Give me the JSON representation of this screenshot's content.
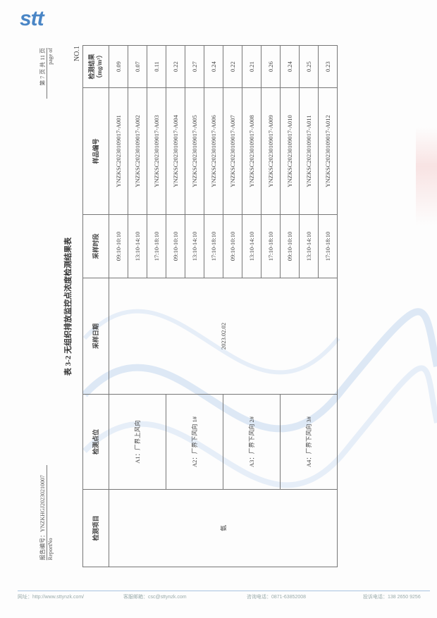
{
  "logo": "stt",
  "header": {
    "report_label": "报告编号：YNZKHGJ20230210007",
    "report_label_en": "ReportNo",
    "page_info": "第 7 页 共 11 页",
    "page_info_en": "page    of",
    "sheet_no": "NO.1"
  },
  "title": "表 3-2 无组织排放监控点浓度检测结果表",
  "table": {
    "headers": [
      "检测项目",
      "检测点位",
      "采样日期",
      "采样时段",
      "样品编号",
      "检测结果（mg/m³）"
    ],
    "item": "氨",
    "date": "2023.02.02",
    "points": [
      "A1：厂界上风向",
      "A2：厂界下风向 1#",
      "A3：厂界下风向 2#",
      "A4：厂界下风向 3#"
    ],
    "rows": [
      {
        "time": "09:10-10:10",
        "sample": "YNZKSC20230109017-A001",
        "result": "0.09"
      },
      {
        "time": "13:10-14:10",
        "sample": "YNZKSC20230109017-A002",
        "result": "0.07"
      },
      {
        "time": "17:10-18:10",
        "sample": "YNZKSC20230109017-A003",
        "result": "0.11"
      },
      {
        "time": "09:10-10:10",
        "sample": "YNZKSC20230109017-A004",
        "result": "0.22"
      },
      {
        "time": "13:10-14:10",
        "sample": "YNZKSC20230109017-A005",
        "result": "0.27"
      },
      {
        "time": "17:10-18:10",
        "sample": "YNZKSC20230109017-A006",
        "result": "0.24"
      },
      {
        "time": "09:10-10:10",
        "sample": "YNZKSC20230109017-A007",
        "result": "0.22"
      },
      {
        "time": "13:10-14:10",
        "sample": "YNZKSC20230109017-A008",
        "result": "0.21"
      },
      {
        "time": "17:10-18:10",
        "sample": "YNZKSC20230109017-A009",
        "result": "0.26"
      },
      {
        "time": "09:10-10:10",
        "sample": "YNZKSC20230109017-A010",
        "result": "0.24"
      },
      {
        "time": "13:10-14:10",
        "sample": "YNZKSC20230109017-A011",
        "result": "0.25"
      },
      {
        "time": "17:10-18:10",
        "sample": "YNZKSC20230109017-A012",
        "result": "0.23"
      }
    ]
  },
  "footer": {
    "website": "网址：http://www.sttynzk.com/",
    "email": "客服邮箱：csc@sttynzk.com",
    "consult_phone": "咨询电话：0871-63852008",
    "complaint_phone": "投诉电话：138 2650 9256"
  },
  "colors": {
    "brand": "#4a86c6",
    "footer_line": "#a9c3e0"
  }
}
